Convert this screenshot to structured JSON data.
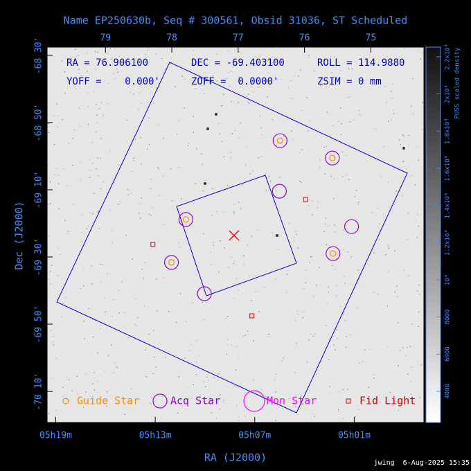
{
  "chart_data": {
    "type": "scatter",
    "title": "Name EP250630b, Seq # 300561, Obsid 31036, ST Scheduled",
    "xlabel": "RA (J2000)",
    "ylabel": "Dec (J2000)",
    "xlim": [
      79.88,
      74.2
    ],
    "ylim": [
      -68.459,
      -70.321
    ],
    "xticks_top": [
      79,
      78,
      77,
      76,
      75
    ],
    "xticks": [
      {
        "value": 79.75,
        "label": "05h19m"
      },
      {
        "value": 78.25,
        "label": "05h13m"
      },
      {
        "value": 76.75,
        "label": "05h07m"
      },
      {
        "value": 75.25,
        "label": "05h01m"
      }
    ],
    "yticks": [
      {
        "value": -68.5,
        "label": "-68 30'"
      },
      {
        "value": -68.8333,
        "label": "-68 50'"
      },
      {
        "value": -69.1667,
        "label": "-69 10'"
      },
      {
        "value": -69.5,
        "label": "-69 30'"
      },
      {
        "value": -69.8333,
        "label": "-69 50'"
      },
      {
        "value": -70.1667,
        "label": "-70 10'"
      }
    ],
    "info": [
      "RA = 76.906100",
      "DEC = -69.403100",
      "ROLL = 114.9880",
      "YOFF =    0.000'",
      "ZOFF =  0.0000'",
      "ZSIM = 0 mm"
    ],
    "series": [
      {
        "name": "Guide Star",
        "color": "#ff8c00",
        "marker": "small-circle",
        "x": [
          76.368,
          75.58,
          77.788,
          78.005,
          75.57
        ],
        "values": [
          -68.923,
          -69.009,
          -69.314,
          -69.527,
          -69.483
        ]
      },
      {
        "name": "Acq Star",
        "color": "#9900cc",
        "marker": "circle",
        "x": [
          76.368,
          75.58,
          77.788,
          78.005,
          75.57,
          76.378,
          75.29,
          77.508
        ],
        "values": [
          -68.923,
          -69.009,
          -69.314,
          -69.527,
          -69.483,
          -69.174,
          -69.349,
          -69.682
        ]
      },
      {
        "name": "Mon Star",
        "color": "#ff00ff",
        "marker": "big-circle",
        "x": [],
        "values": []
      },
      {
        "name": "Fid Light",
        "color": "#dd0000",
        "marker": "square",
        "x": [
          75.984,
          78.285,
          76.793
        ],
        "values": [
          -69.215,
          -69.438,
          -69.792
        ]
      }
    ],
    "pointing": {
      "x": 77.062,
      "y": -69.393,
      "color": "#ff0000"
    },
    "colorbar": {
      "label": "PUSS scaled density",
      "lim": [
        2320,
        22520
      ],
      "ticks": [
        {
          "value": 4000,
          "label": "4000"
        },
        {
          "value": 6000,
          "label": "6000"
        },
        {
          "value": 8000,
          "label": "8000"
        },
        {
          "value": 10000,
          "label": "10⁴"
        },
        {
          "value": 12000,
          "label": "1.2x10⁴"
        },
        {
          "value": 14000,
          "label": "1.4x10⁴"
        },
        {
          "value": 16000,
          "label": "1.6x10⁴"
        },
        {
          "value": 18000,
          "label": "1.8x10⁴"
        },
        {
          "value": 20000,
          "label": "2x10⁴"
        },
        {
          "value": 22000,
          "label": "2.2x10⁴"
        }
      ]
    },
    "footer": "jwing  6-Aug-2025 15:35"
  }
}
